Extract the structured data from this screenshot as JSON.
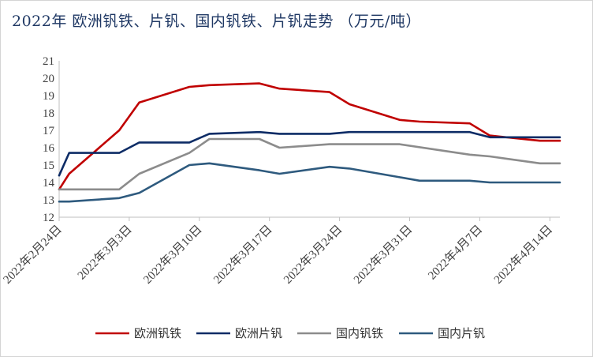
{
  "title": "2022年 欧洲钒铁、片钒、国内钒铁、片钒走势 （万元/吨）",
  "chart_data": {
    "type": "line",
    "title": "2022年 欧洲钒铁、片钒、国内钒铁、片钒走势 （万元/吨）",
    "xlabel": "",
    "ylabel": "",
    "ylim": [
      12,
      21
    ],
    "yticks": [
      12,
      13,
      14,
      15,
      16,
      17,
      18,
      19,
      20,
      21
    ],
    "xlim": [
      "2022-02-24",
      "2022-04-15"
    ],
    "x_ticks": [
      {
        "date": "2022-02-24",
        "label": "2022年2月24日"
      },
      {
        "date": "2022-03-03",
        "label": "2022年3月3日"
      },
      {
        "date": "2022-03-10",
        "label": "2022年3月10日"
      },
      {
        "date": "2022-03-17",
        "label": "2022年3月17日"
      },
      {
        "date": "2022-03-24",
        "label": "2022年3月24日"
      },
      {
        "date": "2022-03-31",
        "label": "2022年3月31日"
      },
      {
        "date": "2022-04-07",
        "label": "2022年4月7日"
      },
      {
        "date": "2022-04-14",
        "label": "2022年4月14日"
      }
    ],
    "grid": false,
    "legend_position": "bottom",
    "series": [
      {
        "name": "欧洲钒铁",
        "color": "#c00000",
        "points": [
          [
            "2022-02-24",
            13.6
          ],
          [
            "2022-02-25",
            14.5
          ],
          [
            "2022-03-02",
            17.0
          ],
          [
            "2022-03-04",
            18.6
          ],
          [
            "2022-03-09",
            19.5
          ],
          [
            "2022-03-11",
            19.6
          ],
          [
            "2022-03-16",
            19.7
          ],
          [
            "2022-03-18",
            19.4
          ],
          [
            "2022-03-23",
            19.2
          ],
          [
            "2022-03-25",
            18.5
          ],
          [
            "2022-03-30",
            17.6
          ],
          [
            "2022-04-01",
            17.5
          ],
          [
            "2022-04-06",
            17.4
          ],
          [
            "2022-04-08",
            16.7
          ],
          [
            "2022-04-13",
            16.4
          ],
          [
            "2022-04-15",
            16.4
          ]
        ]
      },
      {
        "name": "欧洲片钒",
        "color": "#0d2c66",
        "points": [
          [
            "2022-02-24",
            14.4
          ],
          [
            "2022-02-25",
            15.7
          ],
          [
            "2022-03-02",
            15.7
          ],
          [
            "2022-03-04",
            16.3
          ],
          [
            "2022-03-09",
            16.3
          ],
          [
            "2022-03-11",
            16.8
          ],
          [
            "2022-03-16",
            16.9
          ],
          [
            "2022-03-18",
            16.8
          ],
          [
            "2022-03-23",
            16.8
          ],
          [
            "2022-03-25",
            16.9
          ],
          [
            "2022-03-30",
            16.9
          ],
          [
            "2022-04-01",
            16.9
          ],
          [
            "2022-04-06",
            16.9
          ],
          [
            "2022-04-08",
            16.6
          ],
          [
            "2022-04-13",
            16.6
          ],
          [
            "2022-04-15",
            16.6
          ]
        ]
      },
      {
        "name": "国内钒铁",
        "color": "#8c8c8c",
        "points": [
          [
            "2022-02-24",
            13.6
          ],
          [
            "2022-03-02",
            13.6
          ],
          [
            "2022-03-04",
            14.5
          ],
          [
            "2022-03-09",
            15.7
          ],
          [
            "2022-03-11",
            16.5
          ],
          [
            "2022-03-16",
            16.5
          ],
          [
            "2022-03-18",
            16.0
          ],
          [
            "2022-03-23",
            16.2
          ],
          [
            "2022-03-30",
            16.2
          ],
          [
            "2022-04-06",
            15.6
          ],
          [
            "2022-04-08",
            15.5
          ],
          [
            "2022-04-13",
            15.1
          ],
          [
            "2022-04-15",
            15.1
          ]
        ]
      },
      {
        "name": "国内片钒",
        "color": "#2e5a7e",
        "points": [
          [
            "2022-02-24",
            12.9
          ],
          [
            "2022-02-25",
            12.9
          ],
          [
            "2022-03-02",
            13.1
          ],
          [
            "2022-03-04",
            13.4
          ],
          [
            "2022-03-09",
            15.0
          ],
          [
            "2022-03-11",
            15.1
          ],
          [
            "2022-03-16",
            14.7
          ],
          [
            "2022-03-18",
            14.5
          ],
          [
            "2022-03-23",
            14.9
          ],
          [
            "2022-03-25",
            14.8
          ],
          [
            "2022-03-30",
            14.3
          ],
          [
            "2022-04-01",
            14.1
          ],
          [
            "2022-04-06",
            14.1
          ],
          [
            "2022-04-08",
            14.0
          ],
          [
            "2022-04-13",
            14.0
          ],
          [
            "2022-04-15",
            14.0
          ]
        ]
      }
    ]
  }
}
